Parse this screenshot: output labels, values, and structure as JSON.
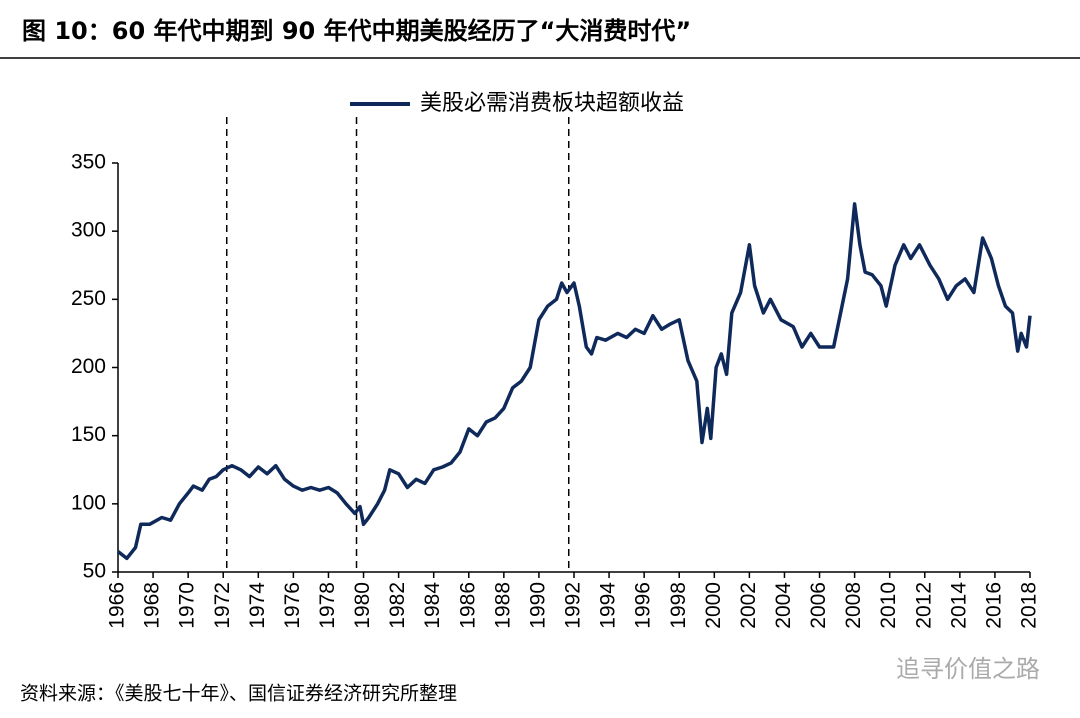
{
  "chart_data": {
    "type": "line",
    "title": "图 10：60 年代中期到 90 年代中期美股经历了“大消费时代”",
    "source": "资料来源：《美股七十年》、国信证券经济研究所整理",
    "watermark": "追寻价值之路",
    "x": [
      1966,
      1966.5,
      1967,
      1967.3,
      1967.8,
      1968.5,
      1969,
      1969.5,
      1970,
      1970.3,
      1970.8,
      1971.2,
      1971.6,
      1972,
      1972.5,
      1973,
      1973.5,
      1974,
      1974.5,
      1975,
      1975.5,
      1976,
      1976.5,
      1977,
      1977.5,
      1978,
      1978.5,
      1979,
      1979.5,
      1979.8,
      1980,
      1980.3,
      1980.8,
      1981.2,
      1981.5,
      1982,
      1982.5,
      1983,
      1983.5,
      1984,
      1984.5,
      1985,
      1985.5,
      1986,
      1986.5,
      1987,
      1987.5,
      1988,
      1988.5,
      1989,
      1989.5,
      1990,
      1990.5,
      1991,
      1991.3,
      1991.6,
      1992,
      1992.3,
      1992.7,
      1993,
      1993.3,
      1993.8,
      1994.5,
      1995,
      1995.5,
      1996,
      1996.5,
      1997,
      1997.5,
      1998,
      1998.5,
      1999,
      1999.3,
      1999.6,
      1999.8,
      2000.1,
      2000.4,
      2000.7,
      2001,
      2001.5,
      2002,
      2002.3,
      2002.8,
      2003.2,
      2003.8,
      2004.5,
      2005,
      2005.5,
      2006,
      2006.8,
      2007.2,
      2007.6,
      2008,
      2008.3,
      2008.6,
      2009,
      2009.5,
      2009.8,
      2010.3,
      2010.8,
      2011.2,
      2011.7,
      2012.3,
      2012.8,
      2013.3,
      2013.8,
      2014.3,
      2014.8,
      2015.3,
      2015.8,
      2016.2,
      2016.6,
      2017,
      2017.3,
      2017.5,
      2017.8,
      2018
    ],
    "series": [
      {
        "name": "美股必需消费板块超额收益",
        "color": "#0f2a5a",
        "values": [
          65,
          60,
          68,
          85,
          85,
          90,
          88,
          100,
          108,
          113,
          110,
          118,
          120,
          125,
          128,
          125,
          120,
          127,
          122,
          128,
          118,
          113,
          110,
          112,
          110,
          112,
          108,
          100,
          93,
          98,
          85,
          90,
          100,
          110,
          125,
          122,
          112,
          118,
          115,
          125,
          127,
          130,
          138,
          155,
          150,
          160,
          163,
          170,
          185,
          190,
          200,
          235,
          245,
          250,
          262,
          255,
          262,
          245,
          215,
          210,
          222,
          220,
          225,
          222,
          228,
          225,
          238,
          228,
          232,
          235,
          205,
          190,
          145,
          170,
          148,
          200,
          210,
          195,
          240,
          255,
          290,
          260,
          240,
          250,
          235,
          230,
          215,
          225,
          215,
          215,
          240,
          265,
          320,
          290,
          270,
          268,
          260,
          245,
          275,
          290,
          280,
          290,
          275,
          265,
          250,
          260,
          265,
          255,
          295,
          280,
          260,
          245,
          240,
          212,
          225,
          215,
          238
        ]
      }
    ],
    "vlines": [
      1972.2,
      1979.6,
      1991.7
    ],
    "xlim": [
      1966,
      2018
    ],
    "xticks": [
      1966,
      1968,
      1970,
      1972,
      1974,
      1976,
      1978,
      1980,
      1982,
      1984,
      1986,
      1988,
      1990,
      1992,
      1994,
      1996,
      1998,
      2000,
      2002,
      2004,
      2006,
      2008,
      2010,
      2012,
      2014,
      2016,
      2018
    ],
    "ylim": [
      50,
      350
    ],
    "yticks": [
      50,
      100,
      150,
      200,
      250,
      300,
      350
    ]
  }
}
